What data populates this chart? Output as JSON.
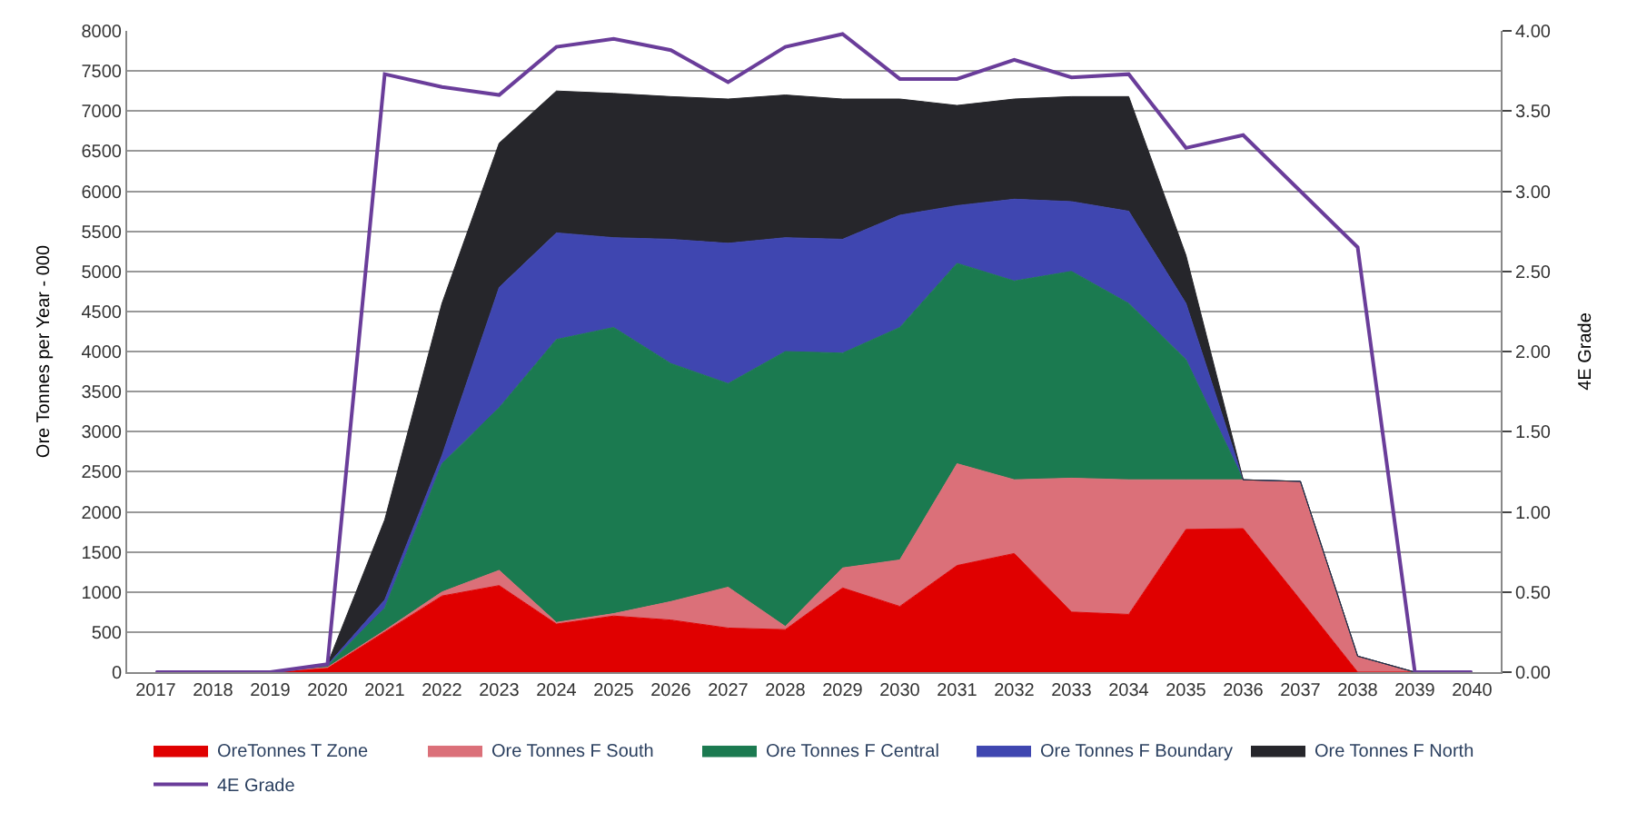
{
  "chart_data": {
    "type": "area",
    "stacked": true,
    "ylabel": "Ore Tonnes per Year - 000",
    "y2label": "4E Grade",
    "categories": [
      "2017",
      "2018",
      "2019",
      "2020",
      "2021",
      "2022",
      "2023",
      "2024",
      "2025",
      "2026",
      "2027",
      "2028",
      "2029",
      "2030",
      "2031",
      "2032",
      "2033",
      "2034",
      "2035",
      "2036",
      "2037",
      "2038",
      "2039",
      "2040"
    ],
    "series": [
      {
        "name": "OreTonnes T Zone",
        "color": "#e00000",
        "values": [
          0,
          0,
          0,
          50,
          500,
          950,
          1080,
          600,
          700,
          650,
          550,
          530,
          1050,
          820,
          1330,
          1480,
          750,
          720,
          1780,
          1790,
          900,
          0,
          0,
          0
        ]
      },
      {
        "name": "Ore Tonnes F South",
        "color": "#db7079",
        "values": [
          0,
          0,
          0,
          10,
          20,
          50,
          190,
          20,
          30,
          230,
          510,
          40,
          250,
          580,
          1270,
          920,
          1670,
          1680,
          620,
          610,
          1480,
          200,
          0,
          0
        ]
      },
      {
        "name": "Ore Tonnes F Central",
        "color": "#1b7a50",
        "values": [
          0,
          0,
          0,
          20,
          280,
          1600,
          2030,
          3530,
          3570,
          2970,
          2540,
          3430,
          2680,
          2900,
          2500,
          2480,
          2580,
          2200,
          1500,
          0,
          0,
          0,
          0,
          0
        ]
      },
      {
        "name": "Ore Tonnes F Boundary",
        "color": "#3f46b0",
        "values": [
          0,
          0,
          0,
          10,
          100,
          100,
          1500,
          1330,
          1120,
          1550,
          1750,
          1420,
          1420,
          1400,
          720,
          1020,
          870,
          1150,
          700,
          0,
          0,
          0,
          0,
          0
        ]
      },
      {
        "name": "Ore Tonnes F North",
        "color": "#26262b",
        "values": [
          0,
          0,
          0,
          10,
          1000,
          1900,
          1800,
          1770,
          1800,
          1780,
          1800,
          1780,
          1750,
          1450,
          1250,
          1250,
          1310,
          1430,
          600,
          0,
          0,
          0,
          0,
          0
        ]
      },
      {
        "name": "4E Grade",
        "type": "line",
        "axis": "y2",
        "color": "#6a3d9a",
        "values": [
          0,
          0,
          0,
          0.05,
          3.73,
          3.65,
          3.6,
          3.9,
          3.95,
          3.88,
          3.68,
          3.9,
          3.98,
          3.7,
          3.7,
          3.82,
          3.71,
          3.73,
          3.27,
          3.35,
          3.0,
          2.65,
          0,
          0
        ]
      }
    ],
    "ylim": [
      0,
      8000
    ],
    "yticks": [
      0,
      500,
      1000,
      1500,
      2000,
      2500,
      3000,
      3500,
      4000,
      4500,
      5000,
      5500,
      6000,
      6500,
      7000,
      7500,
      8000
    ],
    "y2lim": [
      0,
      4
    ],
    "y2ticks": [
      {
        "value": 0,
        "label": "0.00"
      },
      {
        "value": 0.5,
        "label": "0.50"
      },
      {
        "value": 1,
        "label": "1.00"
      },
      {
        "value": 1.5,
        "label": "1.50"
      },
      {
        "value": 2,
        "label": "2.00"
      },
      {
        "value": 2.5,
        "label": "2.50"
      },
      {
        "value": 3,
        "label": "3.00"
      },
      {
        "value": 3.5,
        "label": "3.50"
      },
      {
        "value": 4,
        "label": "4.00"
      }
    ],
    "grid": "y",
    "legend": "bottom"
  }
}
